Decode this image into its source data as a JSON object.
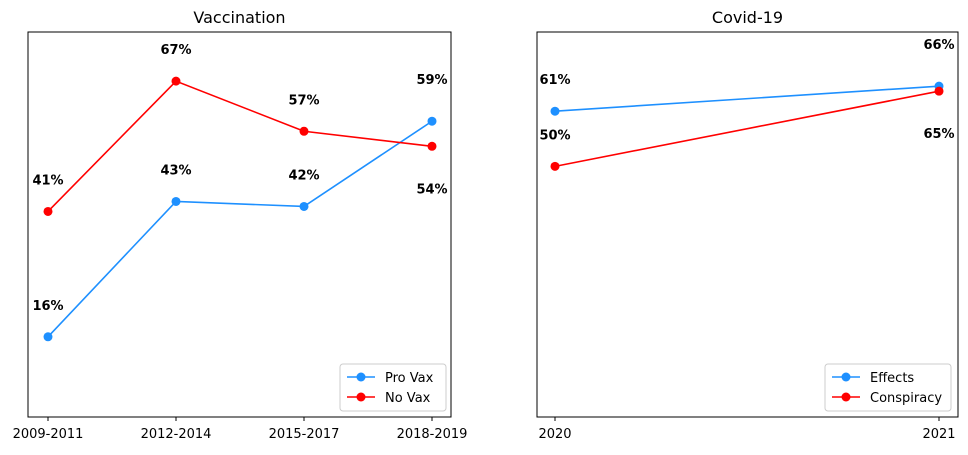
{
  "chart_data": [
    {
      "type": "line",
      "title": "Vaccination",
      "xlabel": "",
      "ylabel": "",
      "categories": [
        "2009-2011",
        "2012-2014",
        "2015-2017",
        "2018-2019"
      ],
      "ylim": [
        0,
        76.8
      ],
      "grid": false,
      "legend": "bottom-right",
      "series": [
        {
          "name": "Pro Vax",
          "color": "#1e90ff",
          "values": [
            16,
            43,
            42,
            59
          ],
          "labels": [
            "16%",
            "43%",
            "42%",
            "59%"
          ]
        },
        {
          "name": "No Vax",
          "color": "#ff0000",
          "values": [
            41,
            67,
            57,
            54
          ],
          "labels": [
            "41%",
            "67%",
            "57%",
            "54%"
          ]
        }
      ]
    },
    {
      "type": "line",
      "title": "Covid-19",
      "xlabel": "",
      "ylabel": "",
      "categories": [
        "2020",
        "2021"
      ],
      "ylim": [
        0,
        76.8
      ],
      "grid": false,
      "legend": "bottom-right",
      "series": [
        {
          "name": "Effects",
          "color": "#1e90ff",
          "values": [
            61,
            66
          ],
          "labels": [
            "61%",
            "66%"
          ]
        },
        {
          "name": "Conspiracy",
          "color": "#ff0000",
          "values": [
            50,
            65
          ],
          "labels": [
            "50%",
            "65%"
          ]
        }
      ]
    }
  ]
}
